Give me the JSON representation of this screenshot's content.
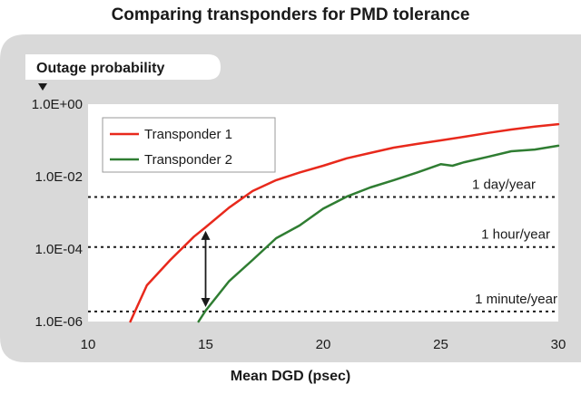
{
  "chart_data": {
    "type": "line",
    "title": "Comparing transponders for PMD tolerance",
    "xlabel": "Mean DGD (psec)",
    "ylabel": "Outage probability",
    "xlim": [
      10,
      30
    ],
    "ylim_log10": [
      -6,
      0
    ],
    "y_scale": "log",
    "x_ticks": [
      10,
      15,
      20,
      25,
      30
    ],
    "x_tick_labels": [
      "10",
      "15",
      "20",
      "25",
      "30"
    ],
    "y_ticks_log10": [
      0,
      -2,
      -4,
      -6
    ],
    "y_tick_labels": [
      "1.0E+00",
      "1.0E-02",
      "1.0E-04",
      "1.0E-06"
    ],
    "legend_position": "top-left",
    "series": [
      {
        "name": "Transponder 1",
        "color": "#e8291c",
        "x": [
          11.8,
          12.5,
          13.5,
          14.5,
          15.0,
          16.0,
          17.0,
          18.0,
          19.0,
          20.0,
          21.0,
          22.0,
          23.0,
          24.0,
          25.0,
          26.0,
          27.0,
          28.0,
          29.0,
          30.0
        ],
        "y": [
          1e-06,
          1e-05,
          5e-05,
          0.00022,
          0.0004,
          0.0014,
          0.004,
          0.008,
          0.013,
          0.02,
          0.032,
          0.045,
          0.063,
          0.08,
          0.1,
          0.126,
          0.16,
          0.2,
          0.24,
          0.28
        ]
      },
      {
        "name": "Transponder 2",
        "color": "#2f7d32",
        "x": [
          14.7,
          15.0,
          16.0,
          17.0,
          18.0,
          19.0,
          20.0,
          21.0,
          22.0,
          23.0,
          24.0,
          25.0,
          25.5,
          26.0,
          27.0,
          28.0,
          29.0,
          30.0
        ],
        "y": [
          1e-06,
          2e-06,
          1.3e-05,
          5e-05,
          0.0002,
          0.00045,
          0.0013,
          0.0028,
          0.005,
          0.008,
          0.013,
          0.022,
          0.02,
          0.025,
          0.035,
          0.05,
          0.056,
          0.071
        ]
      }
    ],
    "reference_lines": [
      {
        "label": "1 day/year",
        "y": 0.00274
      },
      {
        "label": "1 hour/year",
        "y": 0.000114
      },
      {
        "label": "1 minute/year",
        "y": 1.9e-06
      }
    ],
    "arrow": {
      "x": 15,
      "y_from": 0.0004,
      "y_to": 2e-06
    }
  },
  "colors": {
    "plot_bg": "#ffffff",
    "panel_bg": "#d9d9d9",
    "reference_line": "#1a1a1a"
  }
}
